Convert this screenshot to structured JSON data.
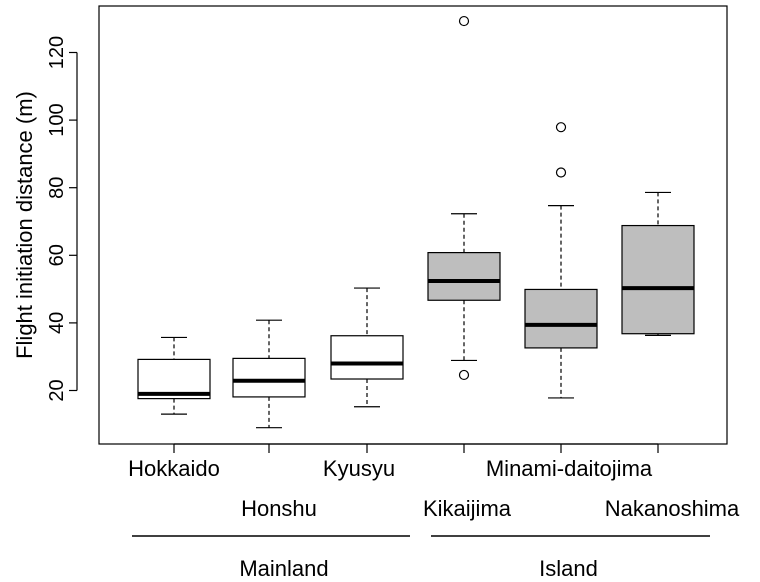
{
  "chart_data": {
    "type": "boxplot",
    "title": "",
    "xlabel": "",
    "ylabel": "Flight initiation distance (m)",
    "ylim": [
      5,
      130
    ],
    "yticks": [
      20,
      40,
      60,
      80,
      100,
      120
    ],
    "grid": false,
    "categories": [
      "Hokkaido",
      "Honshu",
      "Kyusyu",
      "Kikaijima",
      "Minami-daitojima",
      "Nakanoshima"
    ],
    "groups": [
      {
        "label": "Mainland",
        "members": [
          "Hokkaido",
          "Honshu",
          "Kyusyu"
        ]
      },
      {
        "label": "Island",
        "members": [
          "Kikaijima",
          "Minami-daitojima",
          "Nakanoshima"
        ]
      }
    ],
    "colors": {
      "mainland_fill": "#ffffff",
      "island_fill": "#bebebe",
      "stroke": "#000000"
    },
    "boxes": [
      {
        "name": "Hokkaido",
        "group": "Mainland",
        "whisker_low": 13,
        "q1": 17.6,
        "median": 19,
        "q3": 29.2,
        "whisker_high": 35.7,
        "outliers": []
      },
      {
        "name": "Honshu",
        "group": "Mainland",
        "whisker_low": 9,
        "q1": 18.1,
        "median": 22.9,
        "q3": 29.5,
        "whisker_high": 40.8,
        "outliers": []
      },
      {
        "name": "Kyusyu",
        "group": "Mainland",
        "whisker_low": 15.2,
        "q1": 23.4,
        "median": 28,
        "q3": 36.2,
        "whisker_high": 50.3,
        "outliers": []
      },
      {
        "name": "Kikaijima",
        "group": "Island",
        "whisker_low": 28.9,
        "q1": 46.7,
        "median": 52.4,
        "q3": 60.8,
        "whisker_high": 72.3,
        "outliers": [
          24.6,
          129.3
        ]
      },
      {
        "name": "Minami-daitojima",
        "group": "Island",
        "whisker_low": 17.8,
        "q1": 32.6,
        "median": 39.4,
        "q3": 49.9,
        "whisker_high": 74.7,
        "outliers": [
          84.5,
          97.9
        ]
      },
      {
        "name": "Nakanoshima",
        "group": "Island",
        "whisker_low": 36.3,
        "q1": 36.8,
        "median": 50.3,
        "q3": 68.8,
        "whisker_high": 78.6,
        "outliers": []
      }
    ]
  }
}
